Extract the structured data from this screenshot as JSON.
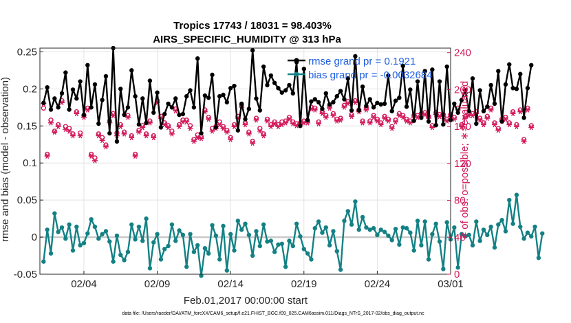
{
  "chart_data": {
    "type": "line",
    "title_line1": "Tropics 17743 / 18031 = 98.403%",
    "title_line2": "AIRS_SPECIFIC_HUMIDITY @ 313 hPa",
    "xlabel": "Feb.01,2017 00:00:00 start",
    "ylabel_left": "rmse and bias (model - observation)",
    "ylabel_right": "# of obs: o=possible; ∗=evaluated",
    "footer": "data file: /Users/raeder/DAI/ATM_forcXX/CAM6_setup/f.e21.FHIST_BGC.f09_025.CAM6assim.011/Diags_NTrS_2017-02/obs_diag_output.nc",
    "xlim": [
      1,
      29
    ],
    "ylim_left": [
      -0.05,
      0.255
    ],
    "ylim_right": [
      0,
      245
    ],
    "x_ticks": [
      {
        "x": 4,
        "label": "02/04"
      },
      {
        "x": 9,
        "label": "02/09"
      },
      {
        "x": 14,
        "label": "02/14"
      },
      {
        "x": 19,
        "label": "02/19"
      },
      {
        "x": 24,
        "label": "02/24"
      },
      {
        "x": 29,
        "label": "03/01"
      }
    ],
    "y_left_ticks": [
      {
        "v": -0.05,
        "label": "-0.05"
      },
      {
        "v": 0,
        "label": "0"
      },
      {
        "v": 0.05,
        "label": "0.05"
      },
      {
        "v": 0.1,
        "label": "0.1"
      },
      {
        "v": 0.15,
        "label": "0.15"
      },
      {
        "v": 0.2,
        "label": "0.2"
      },
      {
        "v": 0.25,
        "label": "0.25"
      }
    ],
    "y_right_ticks": [
      {
        "v": 0,
        "label": "0"
      },
      {
        "v": 40,
        "label": "40"
      },
      {
        "v": 80,
        "label": "80"
      },
      {
        "v": 120,
        "label": "120"
      },
      {
        "v": 160,
        "label": "160"
      },
      {
        "v": 200,
        "label": "200"
      },
      {
        "v": 240,
        "label": "240"
      }
    ],
    "legend": [
      {
        "name": "rmse grand pr = 0.1921",
        "color": "#000000"
      },
      {
        "name": "bias grand pr = -0.0032684",
        "color": "#138184"
      }
    ],
    "legend_text_color": "#1f5fe0",
    "colors": {
      "rmse": "#000000",
      "bias": "#138184",
      "nobs": "#d2185a",
      "zero_line": "#c8c8c8"
    },
    "x_start": 1.25,
    "x_step": 0.25,
    "rmse_values": [
      0.181,
      0.202,
      0.172,
      0.187,
      0.175,
      0.194,
      0.222,
      0.172,
      0.199,
      0.187,
      0.21,
      0.165,
      0.232,
      0.175,
      0.206,
      0.153,
      0.185,
      0.217,
      0.14,
      0.255,
      0.129,
      0.2,
      0.165,
      0.175,
      0.225,
      0.19,
      0.152,
      0.187,
      0.154,
      0.211,
      0.168,
      0.195,
      0.148,
      0.166,
      0.18,
      0.175,
      0.187,
      0.165,
      0.166,
      0.19,
      0.198,
      0.175,
      0.241,
      0.14,
      0.191,
      0.188,
      0.219,
      0.148,
      0.19,
      0.192,
      0.182,
      0.201,
      0.204,
      0.144,
      0.18,
      0.159,
      0.173,
      0.252,
      0.187,
      0.171,
      0.23,
      0.205,
      0.218,
      0.208,
      0.201,
      0.195,
      0.198,
      0.205,
      0.194,
      0.236,
      0.15,
      0.227,
      0.158,
      0.183,
      0.186,
      0.182,
      0.173,
      0.194,
      0.179,
      0.182,
      0.19,
      0.197,
      0.186,
      0.214,
      0.171,
      0.244,
      0.171,
      0.203,
      0.177,
      0.186,
      0.175,
      0.181,
      0.179,
      0.18,
      0.218,
      0.17,
      0.184,
      0.188,
      0.231,
      0.176,
      0.199,
      0.157,
      0.21,
      0.161,
      0.224,
      0.156,
      0.226,
      0.151,
      0.21,
      0.152,
      0.23,
      0.158,
      0.18,
      0.168,
      0.185,
      0.198,
      0.17,
      0.214,
      0.153,
      0.198,
      0.17,
      0.176,
      0.205,
      0.18,
      0.224,
      0.156,
      0.206,
      0.233,
      0.201,
      0.2,
      0.22,
      0.161,
      0.201,
      0.232
    ],
    "bias_values": [
      -0.033,
      0.01,
      -0.022,
      0.032,
      0.007,
      0.013,
      -0.002,
      0.017,
      -0.018,
      0.014,
      -0.011,
      -0.008,
      0.005,
      0.024,
      0.014,
      -0.002,
      0.004,
      0.008,
      -0.006,
      -0.033,
      0.002,
      -0.024,
      -0.031,
      -0.02,
      0.017,
      -0.003,
      0.014,
      -0.005,
      0.025,
      -0.042,
      -0.007,
      0.004,
      -0.03,
      -0.016,
      -0.012,
      0.017,
      -0.005,
      0.009,
      0.003,
      -0.04,
      0.004,
      -0.02,
      -0.011,
      -0.052,
      -0.015,
      -0.022,
      0.016,
      0.002,
      -0.03,
      0.015,
      -0.045,
      0.004,
      -0.018,
      0.022,
      0.01,
      0.018,
      0.003,
      -0.025,
      0.008,
      -0.012,
      0.017,
      -0.006,
      -0.005,
      -0.02,
      -0.01,
      -0.009,
      -0.04,
      -0.005,
      -0.012,
      0.018,
      0.001,
      -0.016,
      -0.022,
      -0.03,
      0.012,
      0.021,
      0.006,
      0.013,
      -0.011,
      0.008,
      -0.019,
      -0.044,
      0.022,
      0.035,
      0.017,
      0.048,
      0.01,
      0.027,
      0.013,
      0.01,
      0.012,
      0.003,
      0.01,
      0.007,
      0.002,
      -0.004,
      0.011,
      -0.01,
      0.013,
      0.012,
      0.006,
      -0.018,
      0.022,
      -0.011,
      0.021,
      -0.03,
      0.004,
      0.018,
      -0.006,
      -0.043,
      0.02,
      -0.003,
      0.013,
      -0.041,
      0.004,
      0.001,
      0.003,
      -0.011,
      0.021,
      -0.005,
      0.01,
      0.003,
      0.014,
      -0.014,
      0.017,
      0.023,
      0.008,
      0.05,
      0.018,
      0.057,
      0.014,
      -0.002,
      0.006,
      0.001,
      0.014,
      -0.028,
      0.005
    ],
    "nobs_possible": [
      180,
      130,
      167,
      155,
      162,
      188,
      160,
      158,
      152,
      176,
      153,
      172,
      180,
      130,
      126,
      152,
      148,
      140,
      166,
      174,
      153,
      162,
      154,
      172,
      150,
      130,
      156,
      161,
      152,
      166,
      150,
      188,
      171,
      164,
      161,
      155,
      179,
      162,
      167,
      167,
      161,
      146,
      151,
      149,
      178,
      170,
      158,
      160,
      165,
      160,
      156,
      148,
      162,
      171,
      183,
      164,
      154,
      144,
      169,
      158,
      152,
      168,
      162,
      165,
      162,
      165,
      166,
      170,
      165,
      163,
      164,
      166,
      166,
      181,
      180,
      165,
      176,
      172,
      182,
      174,
      168,
      169,
      183,
      187,
      173,
      188,
      178,
      166,
      180,
      166,
      172,
      168,
      164,
      171,
      168,
      160,
      167,
      174,
      172,
      168,
      166,
      172,
      172,
      174,
      175,
      171,
      161,
      175,
      173,
      173,
      168,
      173,
      170,
      180,
      162,
      171,
      174,
      174,
      176,
      169,
      164,
      171,
      180,
      164,
      158,
      168,
      170,
      164,
      176,
      162,
      178,
      146,
      180,
      161
    ],
    "nobs_evaluated": [
      185,
      128,
      164,
      154,
      160,
      186,
      157,
      155,
      150,
      174,
      150,
      170,
      178,
      128,
      123,
      150,
      145,
      138,
      164,
      172,
      150,
      160,
      152,
      170,
      148,
      128,
      154,
      159,
      150,
      164,
      148,
      186,
      169,
      162,
      159,
      152,
      177,
      160,
      165,
      165,
      158,
      144,
      148,
      147,
      176,
      168,
      155,
      158,
      162,
      158,
      154,
      146,
      160,
      169,
      181,
      162,
      152,
      142,
      167,
      155,
      150,
      166,
      160,
      163,
      160,
      162,
      164,
      168,
      163,
      161,
      162,
      164,
      164,
      179,
      178,
      163,
      174,
      170,
      180,
      172,
      166,
      167,
      181,
      185,
      171,
      186,
      176,
      164,
      178,
      164,
      170,
      166,
      162,
      169,
      166,
      158,
      165,
      172,
      170,
      166,
      164,
      170,
      170,
      172,
      173,
      169,
      159,
      173,
      171,
      171,
      166,
      171,
      168,
      178,
      160,
      169,
      172,
      172,
      174,
      167,
      162,
      169,
      178,
      162,
      156,
      166,
      168,
      162,
      174,
      160,
      176,
      144,
      178,
      159
    ]
  }
}
